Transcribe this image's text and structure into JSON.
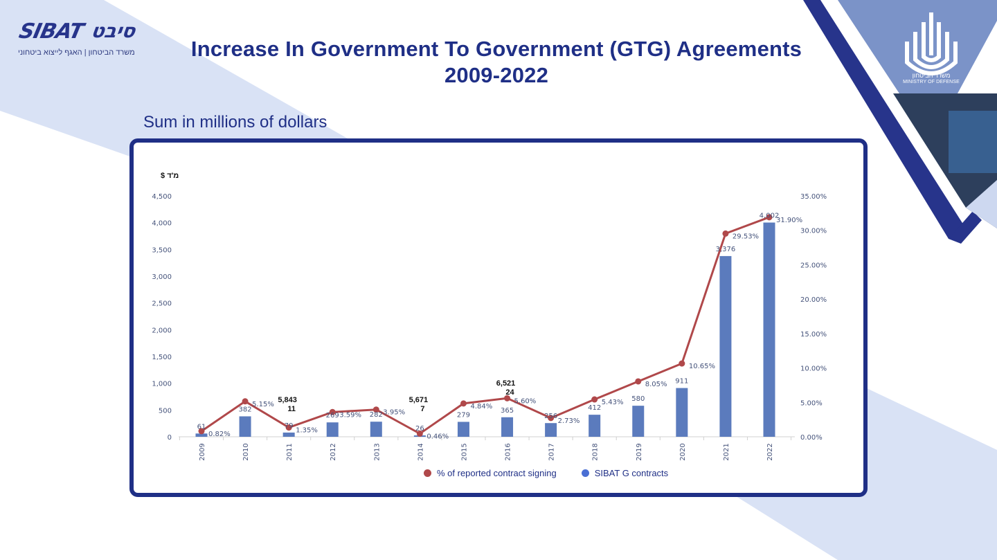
{
  "header": {
    "title": "Increase In Government To Government (GTG) Agreements",
    "title_line2": "2009-2022",
    "subtitle": "Sum in millions of dollars"
  },
  "logos": {
    "sibat_latin": "SIBAT",
    "sibat_hebrew": "סיבט",
    "sibat_subtitle": "משרד הביטחון | האגף לייצוא ביטחוני",
    "mod_hebrew": "משרד הביטחון",
    "mod_english": "MINISTRY OF DEFENSE"
  },
  "colors": {
    "brand_navy": "#1f2f86",
    "bar_blue": "#5b7bbd",
    "line_red": "#b0484a",
    "pale_blue": "#d9e2f5",
    "mid_blue": "#7b93c8"
  },
  "chart_data": {
    "type": "bar+line",
    "title": "Increase In Government To Government (GTG) Agreements 2009-2022",
    "ylabel_left": "$ מ\"ד",
    "ylabel_left_display": "$ מ'ד",
    "categories": [
      "2009",
      "2010",
      "2011",
      "2012",
      "2013",
      "2014",
      "2015",
      "2016",
      "2017",
      "2018",
      "2019",
      "2020",
      "2021",
      "2022"
    ],
    "y_left": {
      "min": 0,
      "max": 4500,
      "ticks": [
        "0",
        "500",
        "1,000",
        "1,500",
        "2,000",
        "2,500",
        "3,000",
        "3,500",
        "4,000",
        "4,500"
      ],
      "tick_values": [
        0,
        500,
        1000,
        1500,
        2000,
        2500,
        3000,
        3500,
        4000,
        4500
      ]
    },
    "y_right": {
      "min": 0,
      "max": 35,
      "ticks": [
        "0.00%",
        "5.00%",
        "10.00%",
        "15.00%",
        "20.00%",
        "25.00%",
        "30.00%",
        "35.00%"
      ],
      "tick_values": [
        0,
        5,
        10,
        15,
        20,
        25,
        30,
        35
      ]
    },
    "series": [
      {
        "name": "SIBAT G contracts",
        "type": "bar",
        "axis": "left",
        "values": [
          61,
          382,
          79,
          269,
          282,
          26,
          279,
          365,
          256,
          412,
          580,
          911,
          3376,
          4002
        ],
        "labels": [
          "61",
          "382",
          "79",
          "269",
          "282",
          "26",
          "279",
          "365",
          "256",
          "412",
          "580",
          "911",
          "3,376",
          "4,002"
        ]
      },
      {
        "name": "% of reported contract signing",
        "type": "line",
        "axis": "right",
        "values": [
          0.82,
          5.15,
          1.35,
          3.59,
          3.95,
          0.46,
          4.84,
          5.6,
          2.73,
          5.43,
          8.05,
          10.65,
          29.53,
          31.9
        ],
        "labels": [
          "0.82%",
          "5.15%",
          "1.35%",
          "3.59%",
          "3.95%",
          "0.46%",
          "4.84%",
          "5.60%",
          "2.73%",
          "5.43%",
          "8.05%",
          "10.65%",
          "29.53%",
          "31.90%"
        ]
      }
    ],
    "annotations": [
      {
        "category": "2011",
        "line1": "5,843",
        "line2": "11"
      },
      {
        "category": "2014",
        "line1": "5,671",
        "line2": "7"
      },
      {
        "category": "2016",
        "line1": "6,521",
        "line2": "24"
      }
    ],
    "legend": {
      "position": "bottom",
      "items": [
        {
          "label": "% of reported contract signing",
          "color": "#b0484a"
        },
        {
          "label": "SIBAT G contracts",
          "color": "#4a6fd4"
        }
      ]
    },
    "grid": false
  }
}
